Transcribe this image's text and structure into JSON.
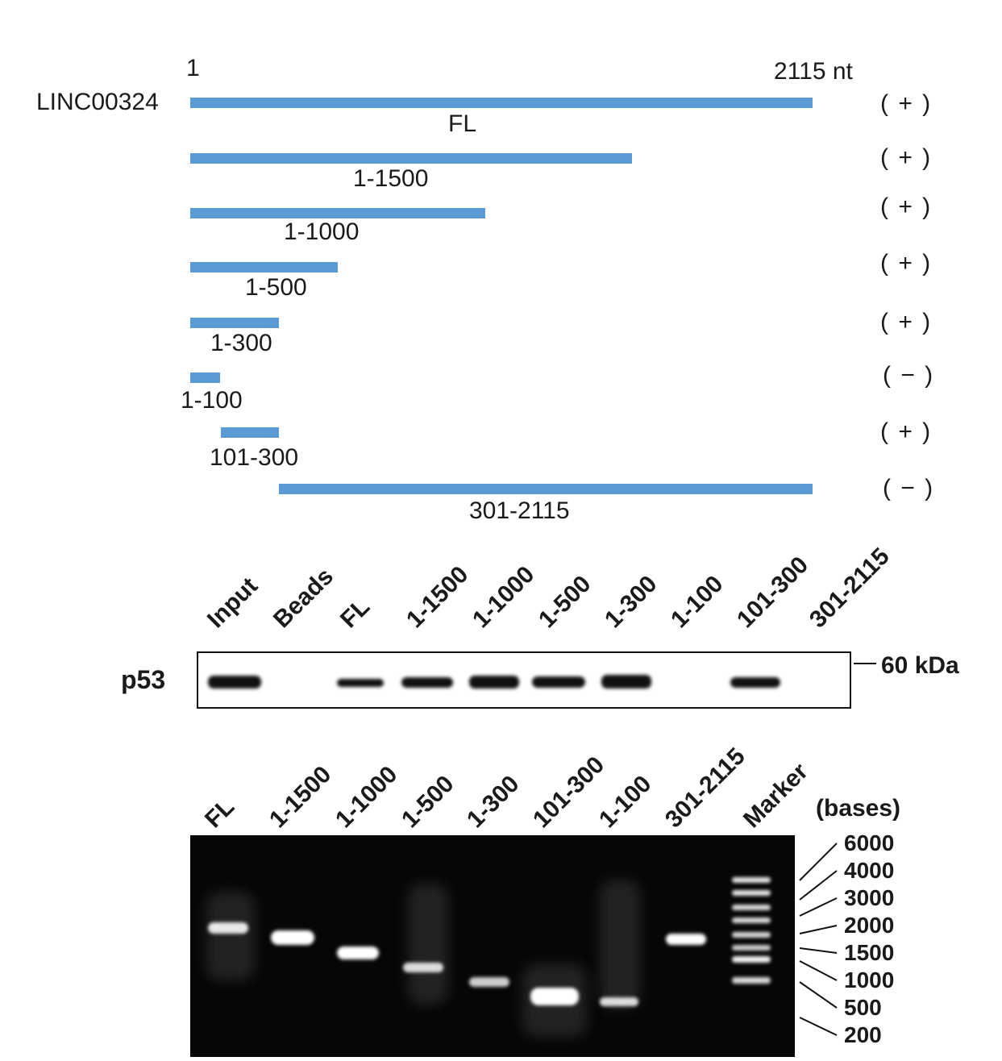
{
  "construct_map": {
    "gene_name": "LINC00324",
    "start_label": "1",
    "end_label": "2115 nt",
    "constructs": [
      {
        "id": "FL",
        "label": "FL",
        "start": 1,
        "end": 2115,
        "binding": "( + )"
      },
      {
        "id": "1-1500",
        "label": "1-1500",
        "start": 1,
        "end": 1500,
        "binding": "( + )"
      },
      {
        "id": "1-1000",
        "label": "1-1000",
        "start": 1,
        "end": 1000,
        "binding": "( + )"
      },
      {
        "id": "1-500",
        "label": "1-500",
        "start": 1,
        "end": 500,
        "binding": "( + )"
      },
      {
        "id": "1-300",
        "label": "1-300",
        "start": 1,
        "end": 300,
        "binding": "( + )"
      },
      {
        "id": "1-100",
        "label": "1-100",
        "start": 1,
        "end": 100,
        "binding": "( − )"
      },
      {
        "id": "101-300",
        "label": "101-300",
        "start": 101,
        "end": 300,
        "binding": "( + )"
      },
      {
        "id": "301-2115",
        "label": "301-2115",
        "start": 301,
        "end": 2115,
        "binding": "( − )"
      }
    ],
    "bar_color": "#5b9bd5"
  },
  "western_blot": {
    "protein_label": "p53",
    "marker_label": "60 kDa",
    "lanes": [
      {
        "label": "Input",
        "intensity": 1.0
      },
      {
        "label": "Beads",
        "intensity": 0
      },
      {
        "label": "FL",
        "intensity": 0.55
      },
      {
        "label": "1-1500",
        "intensity": 0.8
      },
      {
        "label": "1-1000",
        "intensity": 1.0
      },
      {
        "label": "1-500",
        "intensity": 0.75
      },
      {
        "label": "1-300",
        "intensity": 1.0
      },
      {
        "label": "1-100",
        "intensity": 0
      },
      {
        "label": "101-300",
        "intensity": 0.7
      },
      {
        "label": "301-2115",
        "intensity": 0
      }
    ]
  },
  "agarose_gel": {
    "units_label": "(bases)",
    "lanes": [
      {
        "label": "FL"
      },
      {
        "label": "1-1500"
      },
      {
        "label": "1-1000"
      },
      {
        "label": "1-500"
      },
      {
        "label": "1-300"
      },
      {
        "label": "101-300"
      },
      {
        "label": "1-100"
      },
      {
        "label": "301-2115"
      },
      {
        "label": "Marker"
      }
    ],
    "marker_sizes": [
      "6000",
      "4000",
      "3000",
      "2000",
      "1500",
      "1000",
      "500",
      "200"
    ]
  }
}
